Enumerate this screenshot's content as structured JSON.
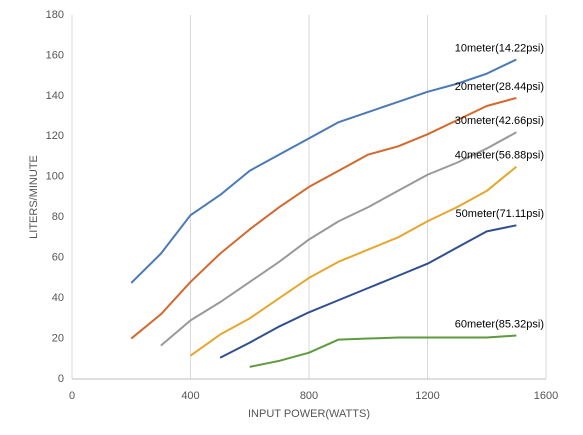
{
  "chart_data": {
    "type": "line",
    "x_label": "INPUT POWER(WATTS)",
    "y_label": "LITERS/MINUTE",
    "xlim": [
      0,
      1600
    ],
    "xticks": [
      0,
      400,
      800,
      1200,
      1600
    ],
    "ylim": [
      0,
      180
    ],
    "yticks": [
      0,
      20,
      40,
      60,
      80,
      100,
      120,
      140,
      160,
      180
    ],
    "grid": "x",
    "series": [
      {
        "name": "10meter(14.22psi)",
        "color": "#4a7ab5",
        "x": [
          200,
          300,
          400,
          500,
          600,
          700,
          800,
          900,
          1000,
          1100,
          1200,
          1300,
          1400,
          1500
        ],
        "values": [
          47.5,
          62,
          81,
          91,
          103,
          111,
          119,
          127,
          132,
          137,
          142,
          146,
          151,
          158
        ]
      },
      {
        "name": "20meter(28.44psi)",
        "color": "#d2692e",
        "x": [
          200,
          300,
          400,
          500,
          600,
          700,
          800,
          900,
          1000,
          1100,
          1200,
          1300,
          1400,
          1500
        ],
        "values": [
          20,
          32,
          48,
          62,
          74,
          85,
          95,
          103,
          111,
          115,
          121,
          128,
          135,
          139
        ]
      },
      {
        "name": "30meter(42.66psi)",
        "color": "#999999",
        "x": [
          300,
          400,
          500,
          600,
          700,
          800,
          900,
          1000,
          1100,
          1200,
          1300,
          1400,
          1500
        ],
        "values": [
          16.5,
          29,
          38,
          48,
          58,
          69,
          78,
          85,
          93,
          101,
          107,
          114,
          122
        ]
      },
      {
        "name": "40meter(56.88psi)",
        "color": "#e5a72e",
        "x": [
          400,
          500,
          600,
          700,
          800,
          900,
          1000,
          1100,
          1200,
          1300,
          1400,
          1500
        ],
        "values": [
          11.5,
          22,
          30,
          40,
          50,
          58,
          64,
          70,
          78,
          85,
          93,
          105
        ]
      },
      {
        "name": "50meter(71.11psi)",
        "color": "#2f4f8f",
        "x": [
          500,
          600,
          700,
          800,
          900,
          1000,
          1100,
          1200,
          1300,
          1400,
          1500
        ],
        "values": [
          10.5,
          18,
          26,
          33,
          39,
          45,
          51,
          57,
          65,
          73,
          76
        ]
      },
      {
        "name": "60meter(85.32psi)",
        "color": "#5e9a3f",
        "x": [
          600,
          700,
          800,
          900,
          1000,
          1100,
          1200,
          1300,
          1400,
          1500
        ],
        "values": [
          6,
          9,
          13,
          19.5,
          20,
          20.5,
          20.5,
          20.5,
          20.5,
          21.5
        ]
      }
    ]
  }
}
